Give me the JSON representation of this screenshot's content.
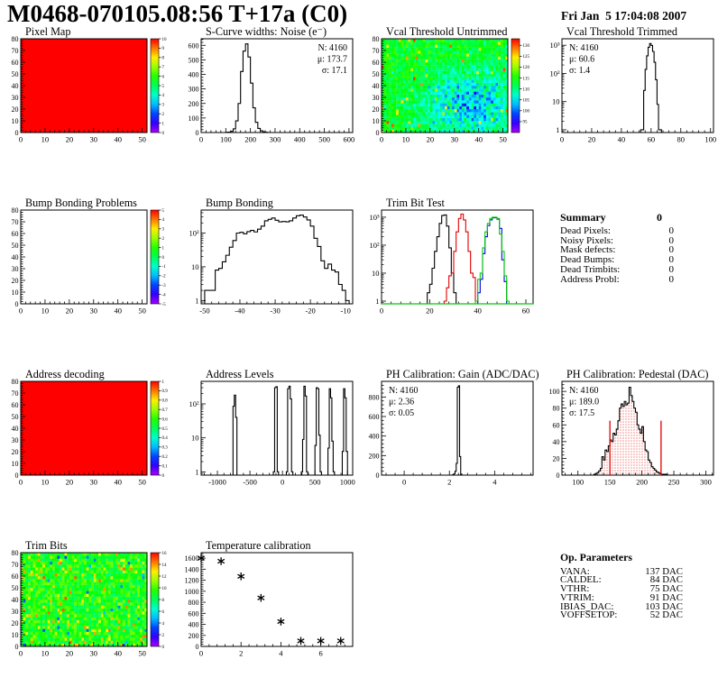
{
  "header": {
    "title": "M0468-070105.08:56 T+17a (C0)",
    "date": "Fri Jan  5 17:04:08 2007"
  },
  "summary": {
    "title": "Summary",
    "total": "0",
    "rows": [
      {
        "label": "Dead Pixels:",
        "value": "0"
      },
      {
        "label": "Noisy Pixels:",
        "value": "0"
      },
      {
        "label": "Mask defects:",
        "value": "0"
      },
      {
        "label": "Dead Bumps:",
        "value": "0"
      },
      {
        "label": "Dead Trimbits:",
        "value": "0"
      },
      {
        "label": "Address Probl:",
        "value": "0"
      }
    ]
  },
  "op_parameters": {
    "title": "Op. Parameters",
    "rows": [
      {
        "label": "VANA:",
        "value": "137 DAC"
      },
      {
        "label": "CALDEL:",
        "value": "84 DAC"
      },
      {
        "label": "VTHR:",
        "value": "75 DAC"
      },
      {
        "label": "VTRIM:",
        "value": "91 DAC"
      },
      {
        "label": "IBIAS_DAC:",
        "value": "103 DAC"
      },
      {
        "label": "VOFFSETOP:",
        "value": "52 DAC"
      }
    ]
  },
  "chart_data": [
    {
      "id": "pixel-map",
      "type": "map2d",
      "title": "Pixel Map",
      "xlim": [
        0,
        52
      ],
      "ylim": [
        0,
        80
      ],
      "x_ticks": [
        0,
        10,
        20,
        30,
        40,
        50
      ],
      "y_ticks": [
        0,
        10,
        20,
        30,
        40,
        50,
        60,
        70,
        80
      ],
      "map": {
        "style": "solid",
        "value": 10,
        "seed": 1
      },
      "colorbar": {
        "min": 0,
        "max": 10,
        "ticks": [
          0,
          1,
          2,
          3,
          4,
          5,
          6,
          7,
          8,
          9,
          10
        ]
      }
    },
    {
      "id": "scurve-noise",
      "type": "hist",
      "title": "S-Curve widths: Noise (e⁻)",
      "log": false,
      "xlim": [
        0,
        615
      ],
      "ylim": [
        0,
        645
      ],
      "x_ticks": [
        0,
        100,
        200,
        300,
        400,
        500,
        600
      ],
      "y_ticks": [
        0,
        100,
        200,
        300,
        400,
        500,
        600
      ],
      "stats": {
        "pos": "tr",
        "lines": [
          {
            "text": "N: 4160"
          },
          {
            "text": "μ: 173.7"
          },
          {
            "text": "σ: 17.1"
          }
        ]
      },
      "series": [
        {
          "color": "#000000",
          "segments": [
            {
              "x0": 100,
              "binw": 10,
              "values": [
                2,
                3,
                8,
                25,
                80,
                200,
                420,
                560,
                610,
                520,
                340,
                170,
                70,
                28,
                12,
                5,
                2
              ]
            }
          ]
        }
      ]
    },
    {
      "id": "vcal-untrimmed",
      "type": "map2d",
      "title": "Vcal Threshold Untrimmed",
      "xlim": [
        0,
        52
      ],
      "ylim": [
        0,
        80
      ],
      "x_ticks": [
        0,
        10,
        20,
        30,
        40,
        50
      ],
      "y_ticks": [
        0,
        10,
        20,
        30,
        40,
        50,
        60,
        70,
        80
      ],
      "map": {
        "style": "noise-vcal",
        "seed": 7,
        "vmin": 90,
        "vmax": 133
      },
      "colorbar": {
        "min": 90,
        "max": 133,
        "ticks": [
          95,
          100,
          105,
          110,
          115,
          120,
          125,
          130
        ]
      }
    },
    {
      "id": "vcal-trimmed",
      "type": "hist",
      "title": "Vcal Threshold Trimmed",
      "log": true,
      "xlim": [
        0,
        102
      ],
      "ylog": [
        0.8,
        1700
      ],
      "x_ticks": [
        0,
        20,
        40,
        60,
        80,
        100
      ],
      "stats": {
        "pos": "tl",
        "lines": [
          {
            "text": "N: 4160"
          },
          {
            "text": "μ: 60.6"
          },
          {
            "text": "σ:  1.4"
          }
        ]
      },
      "series": [
        {
          "color": "#000000",
          "segments": [
            {
              "x0": 53,
              "binw": 1,
              "values": [
                1,
                1,
                25,
                140,
                420,
                850,
                1150,
                980,
                600,
                250,
                60,
                8,
                1,
                1
              ]
            }
          ]
        }
      ]
    },
    {
      "id": "bump-bonding-problems",
      "type": "map2d",
      "title": "Bump Bonding Problems",
      "xlim": [
        0,
        52
      ],
      "ylim": [
        0,
        80
      ],
      "x_ticks": [
        0,
        10,
        20,
        30,
        40,
        50
      ],
      "y_ticks": [
        0,
        10,
        20,
        30,
        40,
        50,
        60,
        70,
        80
      ],
      "map": {
        "style": "empty"
      },
      "colorbar": {
        "min": -5,
        "max": 5,
        "ticks": [
          -5,
          -4,
          -3,
          -2,
          -1,
          0,
          1,
          2,
          3,
          4,
          5
        ]
      }
    },
    {
      "id": "bump-bonding",
      "type": "hist",
      "title": "Bump Bonding",
      "log": true,
      "xlim": [
        -51,
        -8
      ],
      "ylog": [
        0.8,
        480
      ],
      "x_ticks": [
        -50,
        -40,
        -30,
        -20,
        -10
      ],
      "series": [
        {
          "color": "#000000",
          "segments": [
            {
              "x0": -50,
              "binw": 1,
              "values": [
                2,
                2,
                2,
                8,
                9,
                14,
                22,
                38,
                60,
                100,
                105,
                95,
                110,
                120,
                108,
                130,
                160,
                230,
                255,
                280,
                240,
                215,
                220,
                215,
                230,
                280,
                325,
                340,
                300,
                245,
                160,
                70,
                40,
                15,
                9,
                12,
                8,
                7,
                3,
                2,
                1
              ]
            }
          ]
        }
      ]
    },
    {
      "id": "trim-bit-test",
      "type": "hist",
      "title": "Trim Bit Test",
      "log": true,
      "xlim": [
        0,
        63
      ],
      "ylog": [
        0.8,
        1800
      ],
      "x_ticks": [
        0,
        20,
        40,
        60
      ],
      "series": [
        {
          "color": "#000000",
          "segments": [
            {
              "x0": 19,
              "binw": 1,
              "values": [
                2,
                4,
                15,
                60,
                200,
                600,
                1150,
                1200,
                480,
                80,
                10,
                2
              ]
            }
          ]
        },
        {
          "color": "#e00000",
          "segments": [
            {
              "x0": 26,
              "binw": 1,
              "values": [
                1,
                3,
                8,
                10,
                60,
                300,
                900,
                1300,
                800,
                300,
                60,
                10,
                7,
                1
              ]
            }
          ]
        },
        {
          "color": "#0000e0",
          "segments": [
            {
              "x0": 40,
              "binw": 1,
              "values": [
                2,
                6,
                50,
                200,
                500,
                800,
                950,
                950,
                850,
                400,
                30,
                5
              ]
            }
          ]
        },
        {
          "color": "#00cc00",
          "baseline_full": true,
          "segments": [
            {
              "x0": 39,
              "binw": 1,
              "values": [
                1,
                6,
                10,
                80,
                300,
                600,
                900,
                1000,
                1000,
                900,
                250,
                60,
                8,
                1
              ]
            }
          ]
        }
      ]
    },
    {
      "id": "address-decoding",
      "type": "map2d",
      "title": "Address decoding",
      "xlim": [
        0,
        52
      ],
      "ylim": [
        0,
        80
      ],
      "x_ticks": [
        0,
        10,
        20,
        30,
        40,
        50
      ],
      "y_ticks": [
        0,
        10,
        20,
        30,
        40,
        50,
        60,
        70,
        80
      ],
      "map": {
        "style": "solid",
        "value": 1,
        "seed": 2
      },
      "colorbar": {
        "min": 0,
        "max": 1,
        "ticks": [
          0,
          0.1,
          0.2,
          0.3,
          0.4,
          0.5,
          0.6,
          0.7,
          0.8,
          0.9,
          1
        ]
      }
    },
    {
      "id": "address-levels",
      "type": "hist",
      "title": "Address Levels",
      "log": true,
      "xlim": [
        -1250,
        1080
      ],
      "ylog": [
        0.8,
        460
      ],
      "x_ticks": [
        -1000,
        -500,
        0,
        500,
        1000
      ],
      "series": [
        {
          "color": "#000000",
          "segments": [
            {
              "x0": -760,
              "binw": 20,
              "values": [
                85,
                180,
                40
              ]
            },
            {
              "x0": -140,
              "binw": 20,
              "values": [
                1,
                300,
                320,
                1
              ]
            },
            {
              "x0": 60,
              "binw": 20,
              "values": [
                1,
                280,
                330,
                140,
                1
              ]
            },
            {
              "x0": 290,
              "binw": 20,
              "values": [
                1,
                9,
                330,
                170,
                1
              ]
            },
            {
              "x0": 500,
              "binw": 20,
              "values": [
                6,
                300,
                280,
                12,
                1
              ]
            },
            {
              "x0": 700,
              "binw": 20,
              "values": [
                5,
                280,
                150,
                8,
                1
              ]
            },
            {
              "x0": 920,
              "binw": 20,
              "values": [
                4,
                280,
                150,
                4
              ]
            }
          ]
        }
      ]
    },
    {
      "id": "ph-gain",
      "type": "hist",
      "title": "PH Calibration: Gain (ADC/DAC)",
      "log": false,
      "xlim": [
        -1,
        5.7
      ],
      "ylim": [
        0,
        960
      ],
      "x_ticks": [
        0,
        2,
        4
      ],
      "y_ticks": [
        0,
        200,
        400,
        600,
        800
      ],
      "stats": {
        "pos": "tl",
        "lines": [
          {
            "text": "N: 4160"
          },
          {
            "text": "μ: 2.36"
          },
          {
            "text": "σ: 0.05"
          }
        ]
      },
      "series": [
        {
          "color": "#000000",
          "segments": [
            {
              "x0": 2.15,
              "binw": 0.05,
              "values": [
                5,
                15,
                40,
                120,
                900,
                915,
                190,
                10
              ]
            }
          ]
        }
      ]
    },
    {
      "id": "ph-pedestal",
      "type": "hist",
      "title": "PH Calibration: Pedestal (DAC)",
      "log": false,
      "xlim": [
        75,
        312
      ],
      "ylim": [
        0,
        112
      ],
      "x_ticks": [
        100,
        150,
        200,
        250,
        300
      ],
      "y_ticks": [
        0,
        20,
        40,
        60,
        80,
        100
      ],
      "stats": {
        "pos": "tl",
        "lines": [
          {
            "text": "N: 4160",
            "color": "#000000"
          },
          {
            "text": "μ: 189.0",
            "color": "#e00000"
          },
          {
            "text": "σ: 17.5",
            "color": "#e00000"
          }
        ]
      },
      "vlines": [
        {
          "x": 150,
          "y": 65,
          "color": "#e00000"
        },
        {
          "x": 230,
          "y": 65,
          "color": "#e00000"
        }
      ],
      "series": [
        {
          "color": "#000000",
          "fill": "dots-red",
          "segments": [
            {
              "x0": 125,
              "binw": 2.5,
              "values": [
                1,
                2,
                3,
                5,
                8,
                22,
                18,
                30,
                28,
                35,
                42,
                40,
                50,
                48,
                55,
                65,
                80,
                85,
                82,
                88,
                84,
                86,
                105,
                95,
                88,
                80,
                75,
                60,
                55,
                50,
                58,
                40,
                30,
                28,
                18,
                15,
                10,
                8,
                6,
                4,
                3,
                2,
                1,
                1,
                1,
                1
              ]
            }
          ]
        }
      ]
    },
    {
      "id": "trim-bits",
      "type": "map2d",
      "title": "Trim Bits",
      "xlim": [
        0,
        52
      ],
      "ylim": [
        0,
        80
      ],
      "x_ticks": [
        0,
        10,
        20,
        30,
        40,
        50
      ],
      "y_ticks": [
        0,
        10,
        20,
        30,
        40,
        50,
        60,
        70,
        80
      ],
      "map": {
        "style": "noise-trim",
        "seed": 13,
        "vmin": 0,
        "vmax": 16
      },
      "colorbar": {
        "min": 0,
        "max": 16,
        "ticks": [
          0,
          2,
          4,
          6,
          8,
          10,
          12,
          14,
          16
        ]
      }
    },
    {
      "id": "temperature-calibration",
      "type": "scatter",
      "title": "Temperature calibration",
      "xlim": [
        0,
        7.6
      ],
      "ylim": [
        0,
        1700
      ],
      "x_ticks": [
        0,
        2,
        4,
        6
      ],
      "y_ticks": [
        0,
        200,
        400,
        600,
        800,
        1000,
        1200,
        1400,
        1600
      ],
      "points": [
        [
          0,
          1600
        ],
        [
          1,
          1545
        ],
        [
          2,
          1270
        ],
        [
          3,
          880
        ],
        [
          4,
          450
        ],
        [
          5,
          100
        ],
        [
          6,
          100
        ],
        [
          7,
          100
        ]
      ]
    }
  ]
}
